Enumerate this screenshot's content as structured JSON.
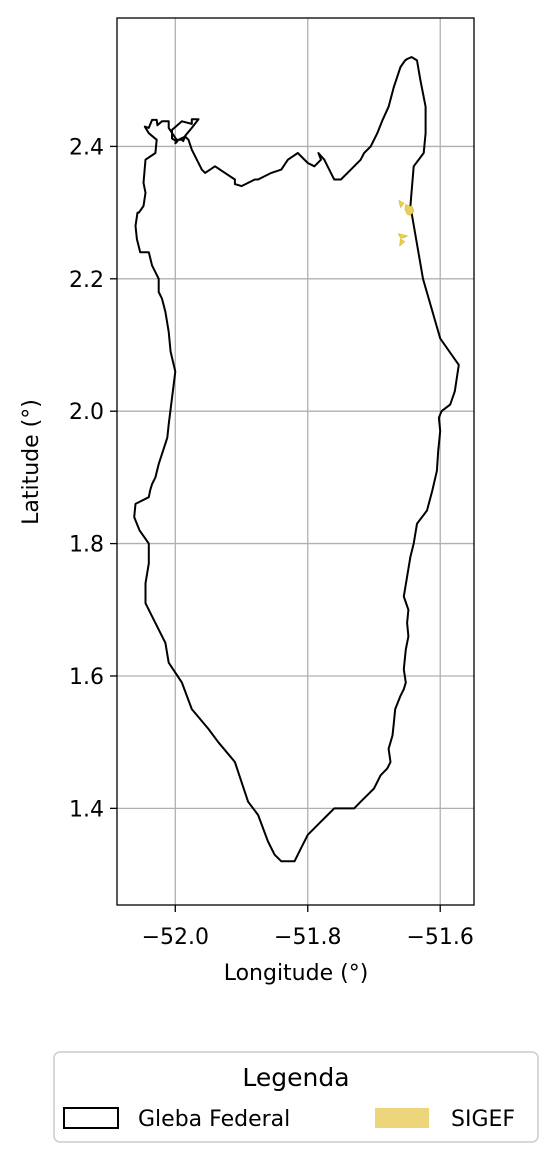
{
  "chart_data": {
    "type": "map",
    "xlabel": "Longitude (°)",
    "ylabel": "Latitude (°)",
    "xlim": [
      -52.088,
      -51.549
    ],
    "ylim": [
      1.254,
      2.594
    ],
    "xticks": [
      -52.0,
      -51.8,
      -51.6
    ],
    "xtick_labels": [
      "−52.0",
      "−51.8",
      "−51.6"
    ],
    "yticks": [
      1.4,
      1.6,
      1.8,
      2.0,
      2.2,
      2.4
    ],
    "ytick_labels": [
      "1.4",
      "1.6",
      "1.8",
      "2.0",
      "2.2",
      "2.4"
    ],
    "grid": true,
    "legend": {
      "title": "Legenda",
      "placement": "bottom-center",
      "entries": [
        {
          "label": "Gleba Federal",
          "style": "outline",
          "color": "#000000"
        },
        {
          "label": "SIGEF",
          "style": "fill",
          "color": "#e8cf62"
        }
      ]
    },
    "series": [
      {
        "name": "Gleba Federal",
        "kind": "polygon",
        "stroke": "#000000",
        "fill": "none",
        "lon": [
          -51.965,
          -51.975,
          -51.985,
          -51.988,
          -51.99,
          -51.998,
          -52.01,
          -52.01,
          -52.02,
          -52.027,
          -52.028,
          -52.035,
          -52.04,
          -52.046,
          -52.04,
          -52.028,
          -52.03,
          -52.045,
          -52.048,
          -52.045,
          -52.048,
          -52.055,
          -52.057,
          -52.06,
          -52.058,
          -52.053,
          -52.04,
          -52.035,
          -52.025,
          -52.025,
          -52.02,
          -52.015,
          -52.01,
          -52.007,
          -52.0,
          -52.005,
          -52.01,
          -52.012,
          -52.025,
          -52.03,
          -52.035,
          -52.038,
          -52.04,
          -52.06,
          -52.062,
          -52.054,
          -52.04,
          -52.04,
          -52.045,
          -52.045,
          -52.035,
          -52.025,
          -52.015,
          -52.01,
          -51.99,
          -51.975,
          -51.95,
          -51.935,
          -51.91,
          -51.9,
          -51.89,
          -51.875,
          -51.86,
          -51.85,
          -51.84,
          -51.828,
          -51.82,
          -51.81,
          -51.8,
          -51.79,
          -51.78,
          -51.77,
          -51.76,
          -51.73,
          -51.72,
          -51.71,
          -51.7,
          -51.69,
          -51.68,
          -51.675,
          -51.678,
          -51.672,
          -51.67,
          -51.668,
          -51.66,
          -51.655,
          -51.652,
          -51.655,
          -51.652,
          -51.648,
          -51.65,
          -51.648,
          -51.655,
          -51.65,
          -51.645,
          -51.64,
          -51.635,
          -51.62,
          -51.612,
          -51.605,
          -51.603,
          -51.6,
          -51.602,
          -51.598,
          -51.585,
          -51.578,
          -51.572,
          -51.6,
          -51.626,
          -51.645,
          -51.64,
          -51.625,
          -51.622,
          -51.622,
          -51.63,
          -51.635,
          -51.643,
          -51.65,
          -51.653,
          -51.66,
          -51.67,
          -51.678,
          -51.687,
          -51.695,
          -51.7,
          -51.705,
          -51.715,
          -51.72,
          -51.73,
          -51.74,
          -51.75,
          -51.76,
          -51.765,
          -51.775,
          -51.784,
          -51.78,
          -51.79,
          -51.8,
          -51.815,
          -51.83,
          -51.84,
          -51.855,
          -51.875,
          -51.88,
          -51.9,
          -51.91,
          -51.91,
          -51.925,
          -51.94,
          -51.955,
          -51.96,
          -51.975,
          -51.98,
          -51.985,
          -51.995,
          -52.0,
          -51.998,
          -52.0,
          -52.005,
          -52.005,
          -51.99,
          -51.975,
          -51.975,
          -51.965
        ],
        "lat": [
          2.441,
          2.428,
          2.416,
          2.408,
          2.41,
          2.41,
          2.428,
          2.438,
          2.438,
          2.432,
          2.44,
          2.44,
          2.428,
          2.43,
          2.42,
          2.41,
          2.39,
          2.38,
          2.345,
          2.33,
          2.31,
          2.3,
          2.3,
          2.28,
          2.26,
          2.24,
          2.24,
          2.22,
          2.2,
          2.18,
          2.17,
          2.15,
          2.12,
          2.09,
          2.06,
          2.02,
          1.98,
          1.96,
          1.92,
          1.9,
          1.89,
          1.88,
          1.87,
          1.86,
          1.84,
          1.82,
          1.8,
          1.77,
          1.74,
          1.71,
          1.69,
          1.67,
          1.65,
          1.62,
          1.59,
          1.55,
          1.52,
          1.5,
          1.47,
          1.44,
          1.41,
          1.39,
          1.35,
          1.33,
          1.32,
          1.32,
          1.32,
          1.34,
          1.36,
          1.37,
          1.38,
          1.39,
          1.4,
          1.4,
          1.41,
          1.42,
          1.43,
          1.45,
          1.46,
          1.47,
          1.49,
          1.51,
          1.53,
          1.55,
          1.57,
          1.58,
          1.59,
          1.61,
          1.64,
          1.66,
          1.68,
          1.7,
          1.72,
          1.75,
          1.78,
          1.8,
          1.83,
          1.85,
          1.88,
          1.91,
          1.94,
          1.97,
          1.99,
          2.0,
          2.01,
          2.03,
          2.07,
          2.11,
          2.2,
          2.31,
          2.37,
          2.39,
          2.42,
          2.46,
          2.5,
          2.53,
          2.535,
          2.532,
          2.53,
          2.52,
          2.49,
          2.46,
          2.44,
          2.42,
          2.41,
          2.4,
          2.39,
          2.38,
          2.37,
          2.36,
          2.35,
          2.35,
          2.36,
          2.38,
          2.39,
          2.38,
          2.37,
          2.375,
          2.39,
          2.38,
          2.365,
          2.36,
          2.35,
          2.35,
          2.34,
          2.343,
          2.35,
          2.36,
          2.37,
          2.36,
          2.365,
          2.395,
          2.41,
          2.415,
          2.41,
          2.405,
          2.406,
          2.409,
          2.412,
          2.425,
          2.438,
          2.434,
          2.441
        ]
      },
      {
        "name": "SIGEF",
        "kind": "patches",
        "fill": "#e8cf62",
        "stroke": "#e3c23a",
        "patches": [
          {
            "lon": [
              -51.662,
              -51.655,
              -51.66
            ],
            "lat": [
              2.318,
              2.314,
              2.308
            ]
          },
          {
            "lon": [
              -51.652,
              -51.642,
              -51.64,
              -51.646,
              -51.65,
              -51.653
            ],
            "lat": [
              2.312,
              2.308,
              2.302,
              2.296,
              2.298,
              2.305
            ]
          },
          {
            "lon": [
              -51.663,
              -51.65,
              -51.655,
              -51.66
            ],
            "lat": [
              2.268,
              2.265,
              2.262,
              2.262
            ]
          },
          {
            "lon": [
              -51.66,
              -51.654,
              -51.661
            ],
            "lat": [
              2.26,
              2.256,
              2.25
            ]
          }
        ]
      }
    ]
  }
}
